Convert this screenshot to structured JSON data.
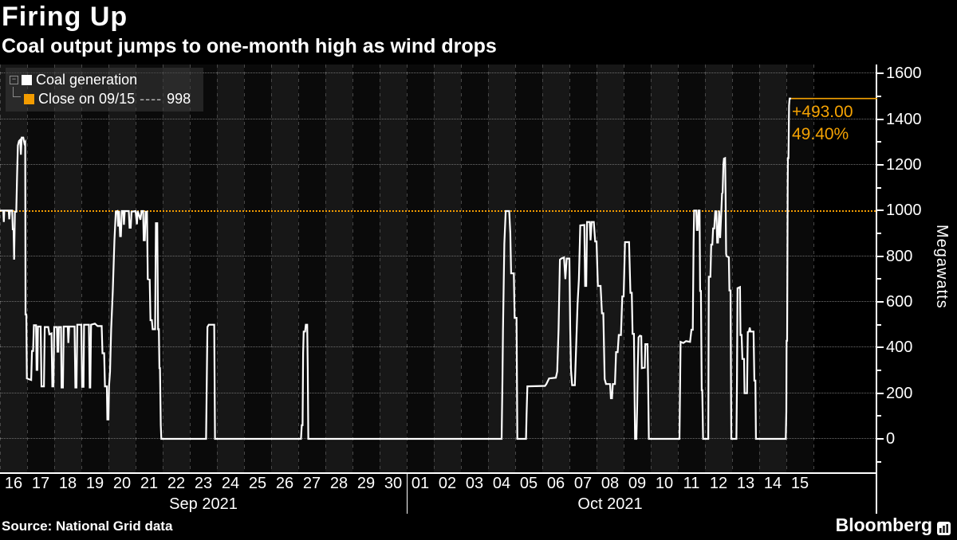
{
  "header": {
    "title": "Firing Up",
    "subtitle": "Coal output jumps to one-month high as wind drops"
  },
  "legend": {
    "expander_glyph": "−",
    "series_label": "Coal generation",
    "close_label": "Close on 09/15",
    "close_dashes": "----",
    "close_value": "998"
  },
  "annotation": {
    "change": "+493.00",
    "percent": "49.40%"
  },
  "footer": {
    "source": "Source: National Grid data",
    "brand": "Bloomberg"
  },
  "chart_data": {
    "type": "line",
    "title": "Firing Up",
    "subtitle": "Coal output jumps to one-month high as wind drops",
    "ylabel": "Megawatts",
    "xlabel": "",
    "ylim": [
      -150,
      1645
    ],
    "xlim_days": [
      0,
      32.3
    ],
    "grid": true,
    "legend_position": "top-left",
    "y_ticks": [
      0,
      200,
      400,
      600,
      800,
      1000,
      1200,
      1400,
      1600
    ],
    "gridline_values": [
      0,
      200,
      400,
      600,
      800,
      1200,
      1400,
      1600
    ],
    "x_axis": {
      "months": [
        {
          "label": "Sep 2021",
          "days": [
            "16",
            "17",
            "18",
            "19",
            "20",
            "21",
            "22",
            "23",
            "24",
            "25",
            "26",
            "27",
            "28",
            "29",
            "30"
          ]
        },
        {
          "label": "Oct 2021",
          "days": [
            "01",
            "02",
            "03",
            "04",
            "05",
            "06",
            "07",
            "08",
            "09",
            "10",
            "11",
            "12",
            "13",
            "14",
            "15"
          ]
        }
      ]
    },
    "close_line": {
      "label": "Close on 09/15",
      "value": 998,
      "color": "#f39c00"
    },
    "last_point": {
      "day": 29.18,
      "value": 1491,
      "change": "+493.00",
      "percent": "49.40%",
      "color": "#f5a303"
    },
    "series": [
      {
        "name": "Coal generation",
        "color": "#ffffff",
        "points_day_mw": [
          [
            0,
            1000
          ],
          [
            0.12,
            1000
          ],
          [
            0.14,
            950
          ],
          [
            0.16,
            1000
          ],
          [
            0.32,
            1000
          ],
          [
            0.34,
            962
          ],
          [
            0.37,
            1000
          ],
          [
            0.45,
            1000
          ],
          [
            0.47,
            918
          ],
          [
            0.5,
            918
          ],
          [
            0.52,
            785
          ],
          [
            0.55,
            995
          ],
          [
            0.6,
            995
          ],
          [
            0.63,
            1150
          ],
          [
            0.66,
            1285
          ],
          [
            0.7,
            1305
          ],
          [
            0.74,
            1310
          ],
          [
            0.77,
            1245
          ],
          [
            0.8,
            1320
          ],
          [
            0.86,
            1320
          ],
          [
            0.9,
            1295
          ],
          [
            0.93,
            1300
          ],
          [
            0.94,
            545
          ],
          [
            0.97,
            545
          ],
          [
            0.99,
            265
          ],
          [
            1.15,
            258
          ],
          [
            1.18,
            385
          ],
          [
            1.22,
            385
          ],
          [
            1.25,
            498
          ],
          [
            1.33,
            498
          ],
          [
            1.35,
            302
          ],
          [
            1.38,
            302
          ],
          [
            1.4,
            492
          ],
          [
            1.5,
            492
          ],
          [
            1.53,
            230
          ],
          [
            1.62,
            230
          ],
          [
            1.65,
            490
          ],
          [
            1.78,
            490
          ],
          [
            1.82,
            458
          ],
          [
            1.9,
            462
          ],
          [
            1.93,
            230
          ],
          [
            1.97,
            230
          ],
          [
            2.0,
            490
          ],
          [
            2.1,
            490
          ],
          [
            2.12,
            382
          ],
          [
            2.15,
            382
          ],
          [
            2.17,
            490
          ],
          [
            2.25,
            490
          ],
          [
            2.27,
            225
          ],
          [
            2.32,
            225
          ],
          [
            2.35,
            492
          ],
          [
            2.5,
            492
          ],
          [
            2.52,
            420
          ],
          [
            2.55,
            492
          ],
          [
            2.75,
            492
          ],
          [
            2.78,
            225
          ],
          [
            2.82,
            225
          ],
          [
            2.85,
            500
          ],
          [
            2.95,
            500
          ],
          [
            3.0,
            500
          ],
          [
            3.03,
            228
          ],
          [
            3.08,
            228
          ],
          [
            3.1,
            500
          ],
          [
            3.28,
            500
          ],
          [
            3.31,
            225
          ],
          [
            3.33,
            225
          ],
          [
            3.36,
            500
          ],
          [
            3.5,
            505
          ],
          [
            3.6,
            494
          ],
          [
            3.75,
            494
          ],
          [
            3.78,
            375
          ],
          [
            3.84,
            375
          ],
          [
            3.87,
            230
          ],
          [
            3.94,
            230
          ],
          [
            3.96,
            85
          ],
          [
            4.0,
            85
          ],
          [
            4.02,
            230
          ],
          [
            4.06,
            295
          ],
          [
            4.1,
            480
          ],
          [
            4.16,
            645
          ],
          [
            4.22,
            870
          ],
          [
            4.27,
            995
          ],
          [
            4.33,
            998
          ],
          [
            4.36,
            930
          ],
          [
            4.39,
            998
          ],
          [
            4.43,
            888
          ],
          [
            4.46,
            888
          ],
          [
            4.49,
            998
          ],
          [
            4.55,
            998
          ],
          [
            4.57,
            938
          ],
          [
            4.6,
            998
          ],
          [
            4.75,
            998
          ],
          [
            4.78,
            925
          ],
          [
            4.82,
            925
          ],
          [
            4.85,
            995
          ],
          [
            5.0,
            998
          ],
          [
            5.05,
            940
          ],
          [
            5.08,
            998
          ],
          [
            5.18,
            960
          ],
          [
            5.22,
            998
          ],
          [
            5.28,
            998
          ],
          [
            5.3,
            870
          ],
          [
            5.34,
            870
          ],
          [
            5.37,
            995
          ],
          [
            5.42,
            995
          ],
          [
            5.45,
            700
          ],
          [
            5.52,
            697
          ],
          [
            5.55,
            520
          ],
          [
            5.6,
            520
          ],
          [
            5.63,
            480
          ],
          [
            5.72,
            480
          ],
          [
            5.75,
            945
          ],
          [
            5.8,
            945
          ],
          [
            5.83,
            480
          ],
          [
            5.86,
            480
          ],
          [
            5.88,
            310
          ],
          [
            5.9,
            310
          ],
          [
            5.93,
            60
          ],
          [
            5.95,
            0
          ],
          [
            7.6,
            0
          ],
          [
            7.65,
            490
          ],
          [
            7.7,
            500
          ],
          [
            7.9,
            500
          ],
          [
            7.93,
            0
          ],
          [
            11.1,
            0
          ],
          [
            11.13,
            60
          ],
          [
            11.16,
            60
          ],
          [
            11.18,
            375
          ],
          [
            11.2,
            470
          ],
          [
            11.25,
            470
          ],
          [
            11.28,
            500
          ],
          [
            11.33,
            500
          ],
          [
            11.35,
            310
          ],
          [
            11.37,
            0
          ],
          [
            18.5,
            0
          ],
          [
            18.53,
            250
          ],
          [
            18.55,
            475
          ],
          [
            18.6,
            855
          ],
          [
            18.65,
            998
          ],
          [
            18.78,
            998
          ],
          [
            18.82,
            900
          ],
          [
            18.85,
            725
          ],
          [
            18.95,
            725
          ],
          [
            18.98,
            530
          ],
          [
            19.05,
            530
          ],
          [
            19.08,
            0
          ],
          [
            19.4,
            0
          ],
          [
            19.42,
            110
          ],
          [
            19.45,
            230
          ],
          [
            20.1,
            232
          ],
          [
            20.15,
            240
          ],
          [
            20.25,
            265
          ],
          [
            20.5,
            268
          ],
          [
            20.55,
            295
          ],
          [
            20.6,
            480
          ],
          [
            20.65,
            785
          ],
          [
            20.7,
            790
          ],
          [
            20.8,
            795
          ],
          [
            20.85,
            700
          ],
          [
            20.9,
            790
          ],
          [
            21.0,
            790
          ],
          [
            21.03,
            480
          ],
          [
            21.06,
            300
          ],
          [
            21.1,
            235
          ],
          [
            21.2,
            235
          ],
          [
            21.25,
            410
          ],
          [
            21.3,
            590
          ],
          [
            21.35,
            700
          ],
          [
            21.4,
            935
          ],
          [
            21.55,
            937
          ],
          [
            21.58,
            670
          ],
          [
            21.62,
            670
          ],
          [
            21.65,
            950
          ],
          [
            21.75,
            950
          ],
          [
            21.78,
            870
          ],
          [
            21.82,
            950
          ],
          [
            21.9,
            950
          ],
          [
            21.95,
            865
          ],
          [
            22.0,
            865
          ],
          [
            22.05,
            670
          ],
          [
            22.15,
            670
          ],
          [
            22.2,
            550
          ],
          [
            22.25,
            550
          ],
          [
            22.3,
            262
          ],
          [
            22.35,
            240
          ],
          [
            22.5,
            240
          ],
          [
            22.53,
            178
          ],
          [
            22.57,
            178
          ],
          [
            22.6,
            240
          ],
          [
            22.68,
            240
          ],
          [
            22.72,
            380
          ],
          [
            22.78,
            380
          ],
          [
            22.82,
            455
          ],
          [
            22.9,
            455
          ],
          [
            22.95,
            624
          ],
          [
            23.0,
            624
          ],
          [
            23.05,
            862
          ],
          [
            23.2,
            862
          ],
          [
            23.25,
            640
          ],
          [
            23.3,
            640
          ],
          [
            23.33,
            460
          ],
          [
            23.38,
            460
          ],
          [
            23.42,
            0
          ],
          [
            23.47,
            0
          ],
          [
            23.5,
            150
          ],
          [
            23.52,
            310
          ],
          [
            23.55,
            445
          ],
          [
            23.6,
            452
          ],
          [
            23.65,
            450
          ],
          [
            23.67,
            310
          ],
          [
            23.78,
            312
          ],
          [
            23.8,
            415
          ],
          [
            23.88,
            415
          ],
          [
            23.9,
            270
          ],
          [
            23.93,
            0
          ],
          [
            25.06,
            0
          ],
          [
            25.1,
            425
          ],
          [
            25.2,
            420
          ],
          [
            25.3,
            428
          ],
          [
            25.45,
            425
          ],
          [
            25.5,
            478
          ],
          [
            25.55,
            478
          ],
          [
            25.58,
            860
          ],
          [
            25.6,
            1000
          ],
          [
            25.68,
            1000
          ],
          [
            25.7,
            915
          ],
          [
            25.73,
            915
          ],
          [
            25.76,
            1000
          ],
          [
            25.8,
            1000
          ],
          [
            25.82,
            648
          ],
          [
            25.85,
            648
          ],
          [
            25.88,
            213
          ],
          [
            25.9,
            213
          ],
          [
            25.93,
            0
          ],
          [
            26.12,
            0
          ],
          [
            26.14,
            710
          ],
          [
            26.2,
            710
          ],
          [
            26.23,
            851
          ],
          [
            26.27,
            851
          ],
          [
            26.3,
            922
          ],
          [
            26.34,
            922
          ],
          [
            26.38,
            997
          ],
          [
            26.42,
            997
          ],
          [
            26.45,
            860
          ],
          [
            26.48,
            860
          ],
          [
            26.52,
            1000
          ],
          [
            26.56,
            880
          ],
          [
            26.6,
            990
          ],
          [
            26.63,
            1075
          ],
          [
            26.65,
            1078
          ],
          [
            26.68,
            1203
          ],
          [
            26.7,
            1228
          ],
          [
            26.74,
            1230
          ],
          [
            26.76,
            1075
          ],
          [
            26.78,
            810
          ],
          [
            26.8,
            800
          ],
          [
            26.88,
            795
          ],
          [
            26.9,
            650
          ],
          [
            26.94,
            650
          ],
          [
            26.97,
            0
          ],
          [
            27.16,
            0
          ],
          [
            27.18,
            250
          ],
          [
            27.2,
            660
          ],
          [
            27.29,
            665
          ],
          [
            27.31,
            455
          ],
          [
            27.35,
            455
          ],
          [
            27.38,
            350
          ],
          [
            27.44,
            350
          ],
          [
            27.46,
            200
          ],
          [
            27.55,
            200
          ],
          [
            27.58,
            468
          ],
          [
            27.62,
            470
          ],
          [
            27.65,
            487
          ],
          [
            27.68,
            470
          ],
          [
            27.79,
            470
          ],
          [
            27.82,
            255
          ],
          [
            27.86,
            255
          ],
          [
            27.88,
            0
          ],
          [
            28.98,
            0
          ],
          [
            29.0,
            120
          ],
          [
            29.01,
            430
          ],
          [
            29.03,
            430
          ],
          [
            29.05,
            1100
          ],
          [
            29.06,
            1230
          ],
          [
            29.08,
            1230
          ],
          [
            29.1,
            1460
          ],
          [
            29.12,
            1491
          ],
          [
            29.18,
            1491
          ]
        ]
      }
    ]
  }
}
